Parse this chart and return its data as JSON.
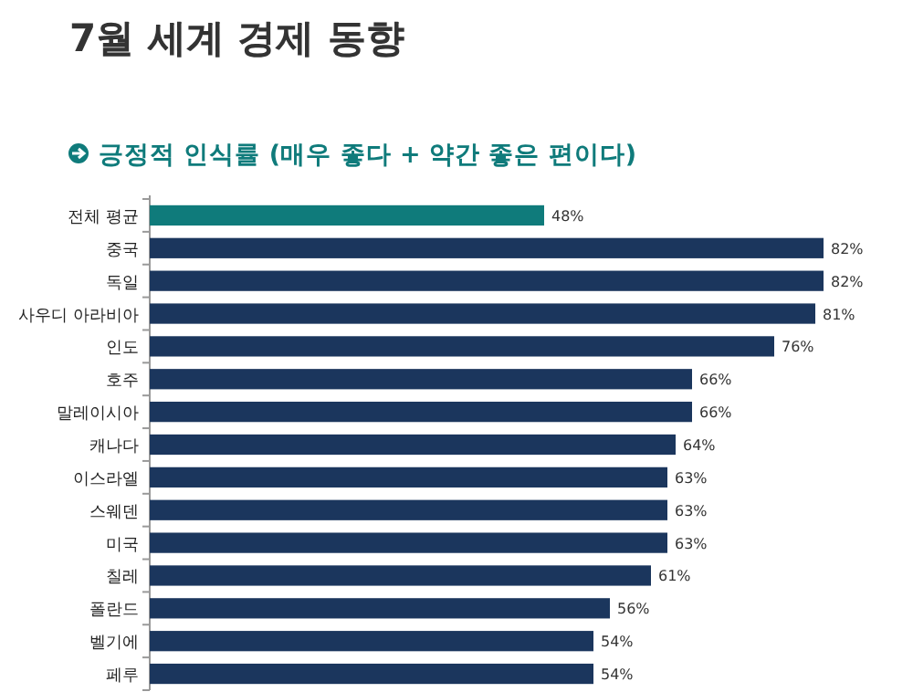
{
  "chart_data": {
    "type": "bar",
    "orientation": "horizontal",
    "title": "7월 세계 경제 동향",
    "subtitle": "긍정적 인식률 (매우 좋다 + 약간 좋은 편이다)",
    "categories": [
      "전체 평균",
      "중국",
      "독일",
      "사우디 아라비아",
      "인도",
      "호주",
      "말레이시아",
      "캐나다",
      "이스라엘",
      "스웨덴",
      "미국",
      "칠레",
      "폴란드",
      "벨기에",
      "페루"
    ],
    "values": [
      48,
      82,
      82,
      81,
      76,
      66,
      66,
      64,
      63,
      63,
      63,
      61,
      56,
      54,
      54
    ],
    "value_labels": [
      "48%",
      "82%",
      "82%",
      "81%",
      "76%",
      "66%",
      "66%",
      "64%",
      "63%",
      "63%",
      "63%",
      "61%",
      "56%",
      "54%",
      "54%"
    ],
    "colors": [
      "#0f7b7b",
      "#1b365d",
      "#1b365d",
      "#1b365d",
      "#1b365d",
      "#1b365d",
      "#1b365d",
      "#1b365d",
      "#1b365d",
      "#1b365d",
      "#1b365d",
      "#1b365d",
      "#1b365d",
      "#1b365d",
      "#1b365d"
    ],
    "relative": false
  }
}
